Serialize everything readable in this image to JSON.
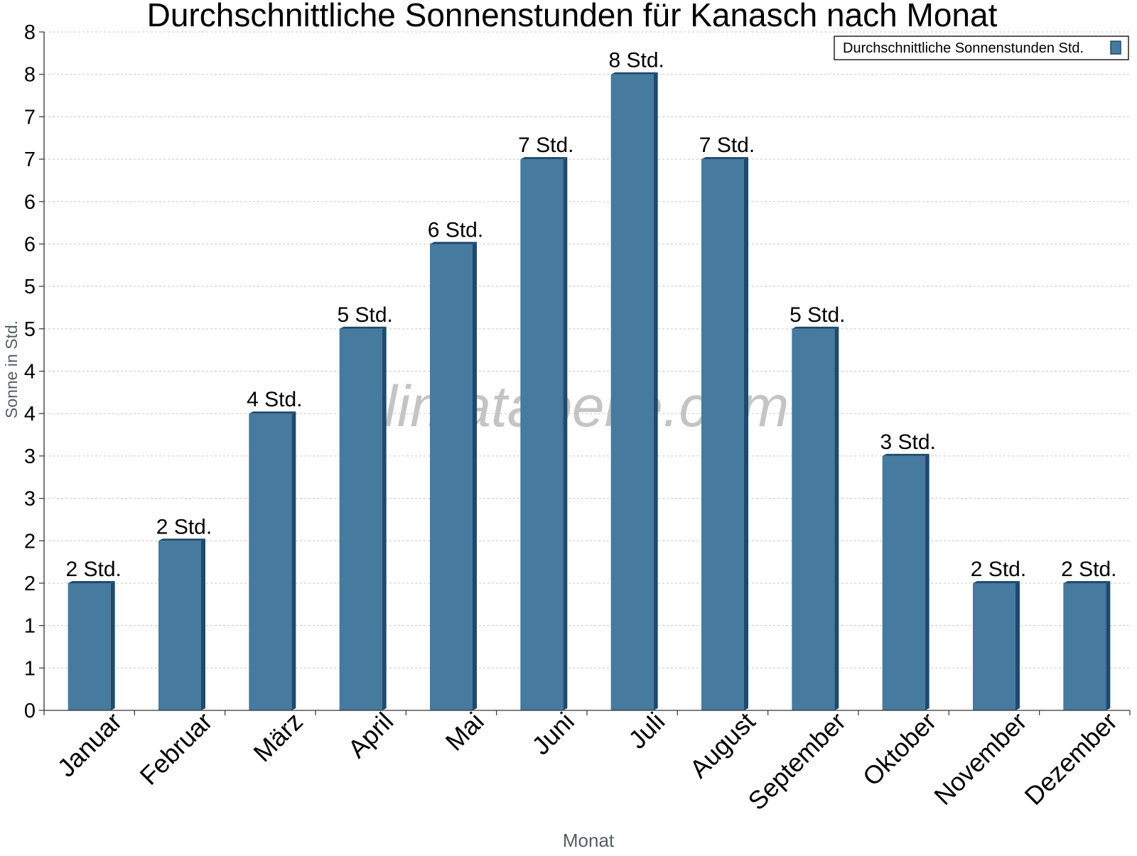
{
  "chart_data": {
    "type": "bar",
    "title": "Durchschnittliche Sonnenstunden für Kanasch nach Monat",
    "xlabel": "Monat",
    "ylabel": "Sonne in Std.",
    "categories": [
      "Januar",
      "Februar",
      "März",
      "April",
      "Mai",
      "Juni",
      "Juli",
      "August",
      "September",
      "Oktober",
      "November",
      "Dezember"
    ],
    "series": [
      {
        "name": "Durchschnittliche Sonnenstunden Std.",
        "values": [
          1.5,
          2.0,
          3.5,
          4.5,
          5.5,
          6.5,
          7.5,
          6.5,
          4.5,
          3.0,
          1.5,
          1.5
        ],
        "labels": [
          "2 Std.",
          "2 Std.",
          "4 Std.",
          "5 Std.",
          "6 Std.",
          "7 Std.",
          "8 Std.",
          "7 Std.",
          "5 Std.",
          "3 Std.",
          "2 Std.",
          "2 Std."
        ]
      }
    ],
    "ylim": [
      0,
      8
    ],
    "yticks": [
      0,
      0.5,
      1,
      1.5,
      2,
      2.5,
      3,
      3.5,
      4,
      4.5,
      5,
      5.5,
      6,
      6.5,
      7,
      7.5,
      8
    ],
    "ytick_labels": [
      "0",
      "1",
      "1",
      "2",
      "2",
      "3",
      "3",
      "4",
      "4",
      "5",
      "5",
      "6",
      "6",
      "7",
      "7",
      "8",
      "8"
    ],
    "grid": true,
    "legend_position": "top-right",
    "watermark": "klimatabelle.com",
    "colors": {
      "bar": "#467a9e",
      "bar_edge": "#1d4a6d",
      "grid": "#c8c8c8",
      "axis": "#333333",
      "axis_label": "#555e66"
    }
  }
}
